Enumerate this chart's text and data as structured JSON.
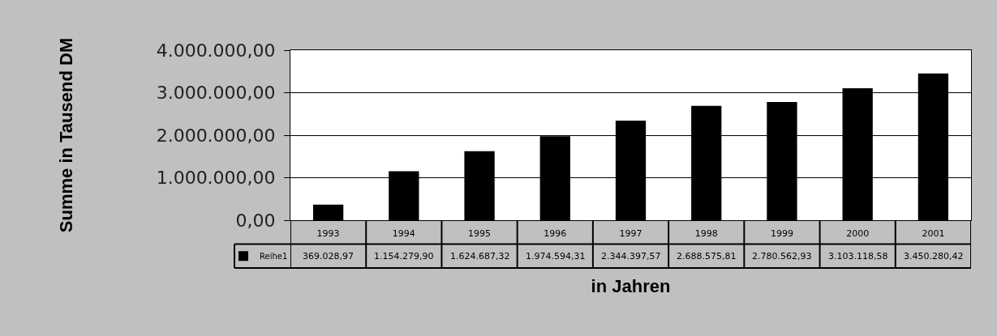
{
  "chart_data": {
    "type": "bar",
    "xlabel": "in Jahren",
    "ylabel": "Summe in Tausend DM",
    "categories": [
      "1993",
      "1994",
      "1995",
      "1996",
      "1997",
      "1998",
      "1999",
      "2000",
      "2001"
    ],
    "series": [
      {
        "name": "Reihe1",
        "color": "#000000",
        "values": [
          369028.97,
          1154279.9,
          1624687.32,
          1974594.31,
          2344397.57,
          2688575.81,
          2780562.93,
          3103118.58,
          3450280.42
        ],
        "value_labels": [
          "369.028,97",
          "1.154.279,90",
          "1.624.687,32",
          "1.974.594,31",
          "2.344.397,57",
          "2.688.575,81",
          "2.780.562,93",
          "3.103.118,58",
          "3.450.280,42"
        ]
      }
    ],
    "ylim": [
      0,
      4000000
    ],
    "yticks": [
      {
        "value": 0,
        "label": "0,00"
      },
      {
        "value": 1000000,
        "label": "1.000.000,00"
      },
      {
        "value": 2000000,
        "label": "2.000.000,00"
      },
      {
        "value": 3000000,
        "label": "3.000.000,00"
      },
      {
        "value": 4000000,
        "label": "4.000.000,00"
      }
    ],
    "grid": "y",
    "legend": "bottom left"
  }
}
